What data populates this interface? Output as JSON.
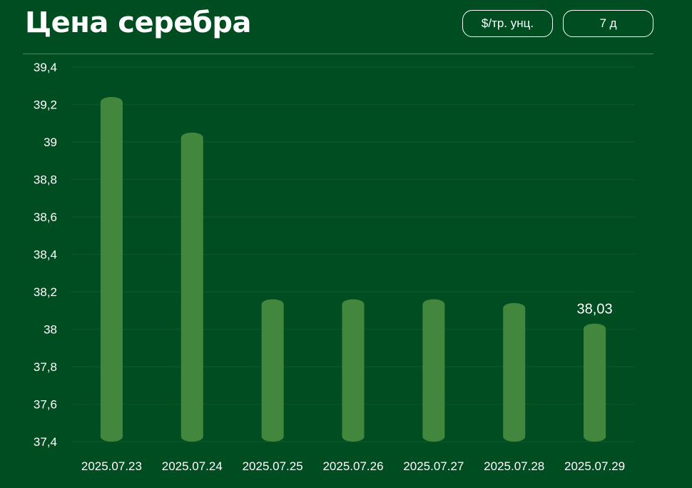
{
  "header": {
    "title": "Цена серебра",
    "unit_label": "$/тр. унц.",
    "period_label": "7 д"
  },
  "colors": {
    "background": "#004d22",
    "bar": "#43873f",
    "grid": "#0c5a2c"
  },
  "chart_data": {
    "type": "bar",
    "title": "Цена серебра",
    "categories": [
      "2025.07.23",
      "2025.07.24",
      "2025.07.25",
      "2025.07.26",
      "2025.07.27",
      "2025.07.28",
      "2025.07.29"
    ],
    "values": [
      39.24,
      39.05,
      38.16,
      38.16,
      38.16,
      38.14,
      38.03
    ],
    "ylim": [
      37.4,
      39.4
    ],
    "yticks": [
      37.4,
      37.6,
      37.8,
      38,
      38.2,
      38.4,
      38.6,
      38.8,
      39,
      39.2,
      39.4
    ],
    "ytick_labels": [
      "37,4",
      "37,6",
      "37,8",
      "38",
      "38,2",
      "38,4",
      "38,6",
      "38,8",
      "39",
      "39,2",
      "39,4"
    ],
    "data_labels": [
      {
        "index": 6,
        "text": "38,03"
      }
    ],
    "grid": true,
    "legend": "none"
  }
}
